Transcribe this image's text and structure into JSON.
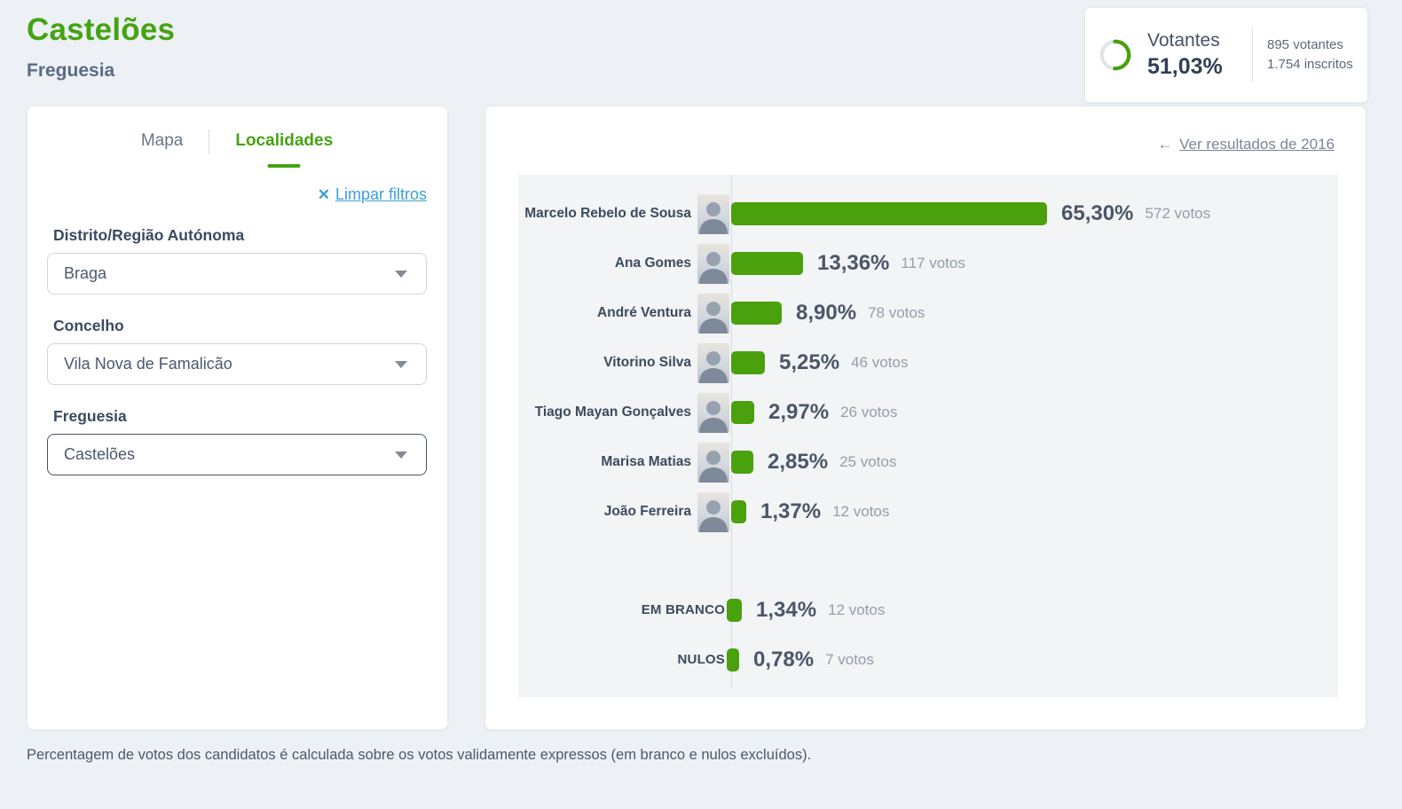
{
  "page": {
    "title": "Castelões",
    "subtitle": "Freguesia",
    "footnote": "Percentagem de votos dos candidatos é calculada sobre os votos validamente expressos (em branco e nulos excluídos)."
  },
  "turnout": {
    "label": "Votantes",
    "percent_label": "51,03%",
    "percent_value": 51.03,
    "voters": "895 votantes",
    "registered": "1.754 inscritos"
  },
  "filters": {
    "tabs": [
      {
        "label": "Mapa",
        "active": false
      },
      {
        "label": "Localidades",
        "active": true
      }
    ],
    "clear_label": "Limpar filtros",
    "fields": [
      {
        "label": "Distrito/Região Autónoma",
        "value": "Braga"
      },
      {
        "label": "Concelho",
        "value": "Vila Nova de Famalicão"
      },
      {
        "label": "Freguesia",
        "value": "Castelões"
      }
    ]
  },
  "results": {
    "back_link_label": "Ver resultados de 2016"
  },
  "chart_data": {
    "type": "bar",
    "orientation": "horizontal",
    "value_unit": "percent of valid votes",
    "bar_color": "#4aa00d",
    "candidates": [
      {
        "name": "Marcelo Rebelo de Sousa",
        "percent": 65.3,
        "percent_label": "65,30%",
        "votes": 572,
        "votes_label": "572 votos",
        "has_photo": true
      },
      {
        "name": "Ana Gomes",
        "percent": 13.36,
        "percent_label": "13,36%",
        "votes": 117,
        "votes_label": "117 votos",
        "has_photo": true
      },
      {
        "name": "André Ventura",
        "percent": 8.9,
        "percent_label": "8,90%",
        "votes": 78,
        "votes_label": "78 votos",
        "has_photo": true
      },
      {
        "name": "Vitorino Silva",
        "percent": 5.25,
        "percent_label": "5,25%",
        "votes": 46,
        "votes_label": "46 votos",
        "has_photo": true
      },
      {
        "name": "Tiago Mayan Gonçalves",
        "percent": 2.97,
        "percent_label": "2,97%",
        "votes": 26,
        "votes_label": "26 votos",
        "has_photo": true
      },
      {
        "name": "Marisa Matias",
        "percent": 2.85,
        "percent_label": "2,85%",
        "votes": 25,
        "votes_label": "25 votos",
        "has_photo": true
      },
      {
        "name": "João Ferreira",
        "percent": 1.37,
        "percent_label": "1,37%",
        "votes": 12,
        "votes_label": "12 votos",
        "has_photo": true
      }
    ],
    "others": [
      {
        "name": "EM BRANCO",
        "percent": 1.34,
        "percent_label": "1,34%",
        "votes": 12,
        "votes_label": "12 votos",
        "has_photo": false
      },
      {
        "name": "NULOS",
        "percent": 0.78,
        "percent_label": "0,78%",
        "votes": 7,
        "votes_label": "7 votos",
        "has_photo": false
      }
    ]
  },
  "colors": {
    "accent_green": "#4aa00d",
    "link_blue": "#3e9fd4",
    "page_background": "#edf1f6",
    "plot_background": "#f2f4f6"
  }
}
